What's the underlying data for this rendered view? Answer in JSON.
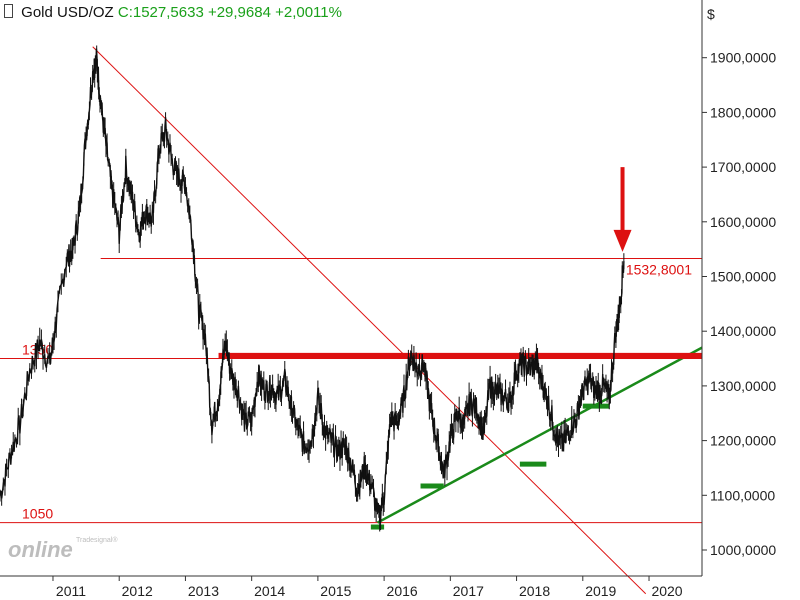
{
  "header": {
    "name": "Gold USD/OZ",
    "quote": "C:1527,5633 +29,9684 +2,0011%"
  },
  "watermark": {
    "brand": "online",
    "small": "Tradesignal®"
  },
  "colors": {
    "price": "#111111",
    "red": "#dd1111",
    "green": "#1a8a1a",
    "quote": "#1aa01a"
  },
  "chart_data": {
    "type": "line",
    "title": "Gold USD/OZ",
    "currency_label": "$",
    "xlabel": "",
    "ylabel": "",
    "ylim": [
      950,
      2050
    ],
    "xlim": [
      2010.2,
      2020.8
    ],
    "y_ticks": [
      1000,
      1100,
      1200,
      1300,
      1400,
      1500,
      1600,
      1700,
      1800,
      1900
    ],
    "y_tick_labels": [
      "1000,0000",
      "1100,0000",
      "1200,0000",
      "1300,0000",
      "1400,0000",
      "1500,0000",
      "1600,0000",
      "1700,0000",
      "1800,0000",
      "1900,0000"
    ],
    "x_ticks": [
      2011,
      2012,
      2013,
      2014,
      2015,
      2016,
      2017,
      2018,
      2019,
      2020
    ],
    "x_tick_labels": [
      "2011",
      "2012",
      "2013",
      "2014",
      "2015",
      "2016",
      "2017",
      "2018",
      "2019",
      "2020"
    ],
    "grid": false,
    "series": [
      {
        "x": [
          2010.2,
          2010.35,
          2010.5,
          2010.65,
          2010.8,
          2010.95,
          2011.05,
          2011.2,
          2011.3,
          2011.4,
          2011.5,
          2011.6,
          2011.66,
          2011.72,
          2011.8,
          2011.9,
          2012.0,
          2012.1,
          2012.2,
          2012.3,
          2012.4,
          2012.5,
          2012.6,
          2012.7,
          2012.8,
          2012.9,
          2013.0,
          2013.1,
          2013.2,
          2013.3,
          2013.4,
          2013.5,
          2013.6,
          2013.7,
          2013.8,
          2013.9,
          2014.0,
          2014.1,
          2014.2,
          2014.3,
          2014.4,
          2014.5,
          2014.6,
          2014.7,
          2014.8,
          2014.9,
          2015.0,
          2015.1,
          2015.2,
          2015.3,
          2015.4,
          2015.5,
          2015.6,
          2015.7,
          2015.8,
          2015.92,
          2016.0,
          2016.1,
          2016.2,
          2016.3,
          2016.4,
          2016.5,
          2016.6,
          2016.7,
          2016.8,
          2016.9,
          2017.0,
          2017.1,
          2017.2,
          2017.3,
          2017.4,
          2017.5,
          2017.6,
          2017.7,
          2017.8,
          2017.9,
          2018.0,
          2018.1,
          2018.2,
          2018.3,
          2018.4,
          2018.5,
          2018.6,
          2018.7,
          2018.8,
          2018.9,
          2019.0,
          2019.1,
          2019.2,
          2019.3,
          2019.4,
          2019.5,
          2019.55,
          2019.62
        ],
        "y": [
          1100,
          1170,
          1230,
          1330,
          1380,
          1340,
          1420,
          1530,
          1550,
          1620,
          1760,
          1870,
          1900,
          1820,
          1740,
          1650,
          1580,
          1700,
          1640,
          1580,
          1620,
          1600,
          1730,
          1770,
          1710,
          1680,
          1670,
          1580,
          1440,
          1390,
          1230,
          1280,
          1380,
          1320,
          1290,
          1230,
          1240,
          1320,
          1290,
          1300,
          1280,
          1310,
          1260,
          1220,
          1190,
          1200,
          1280,
          1220,
          1200,
          1180,
          1190,
          1160,
          1110,
          1150,
          1120,
          1060,
          1100,
          1240,
          1230,
          1280,
          1360,
          1330,
          1340,
          1260,
          1200,
          1140,
          1200,
          1250,
          1230,
          1270,
          1260,
          1210,
          1300,
          1290,
          1280,
          1270,
          1330,
          1340,
          1330,
          1340,
          1300,
          1260,
          1210,
          1190,
          1220,
          1240,
          1290,
          1310,
          1290,
          1300,
          1280,
          1400,
          1440,
          1528
        ]
      }
    ],
    "annotations": [
      {
        "type": "hline",
        "y": 1350,
        "label": "1350"
      },
      {
        "type": "hline",
        "y": 1050,
        "label": "1050"
      },
      {
        "type": "hline",
        "y": 1532.8,
        "label": "1532,8001"
      },
      {
        "type": "trendline",
        "name": "downtrend",
        "x": [
          2011.6,
          2019.95
        ],
        "y": [
          1920,
          920
        ]
      },
      {
        "type": "trendline",
        "name": "uptrend",
        "x": [
          2015.9,
          2020.8
        ],
        "y": [
          1050,
          1370
        ]
      },
      {
        "type": "resistance",
        "x": [
          2013.5,
          2020.8
        ],
        "y": 1355
      },
      {
        "type": "support-mark",
        "x": [
          2015.8,
          2016.0
        ],
        "y": 1042
      },
      {
        "type": "support-mark",
        "x": [
          2016.55,
          2016.9
        ],
        "y": 1117
      },
      {
        "type": "support-mark",
        "x": [
          2018.05,
          2018.45
        ],
        "y": 1157
      },
      {
        "type": "support-mark",
        "x": [
          2019.0,
          2019.4
        ],
        "y": 1263
      },
      {
        "type": "arrow",
        "x": 2019.6,
        "y_from": 1700,
        "y_to": 1545,
        "direction": "down"
      }
    ]
  }
}
